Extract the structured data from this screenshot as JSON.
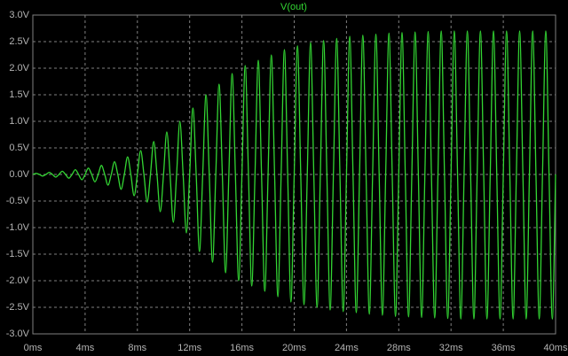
{
  "chart_data": {
    "type": "line",
    "background": "#000000",
    "grid": true,
    "xlim": [
      0,
      40
    ],
    "ylim": [
      -3,
      3
    ],
    "xticks": [
      {
        "value": 0,
        "label": "0ms"
      },
      {
        "value": 4,
        "label": "4ms"
      },
      {
        "value": 8,
        "label": "8ms"
      },
      {
        "value": 12,
        "label": "12ms"
      },
      {
        "value": 16,
        "label": "16ms"
      },
      {
        "value": 20,
        "label": "20ms"
      },
      {
        "value": 24,
        "label": "24ms"
      },
      {
        "value": 28,
        "label": "28ms"
      },
      {
        "value": 32,
        "label": "32ms"
      },
      {
        "value": 36,
        "label": "36ms"
      },
      {
        "value": 40,
        "label": "40ms"
      }
    ],
    "yticks": [
      {
        "value": 3,
        "label": "3.0V"
      },
      {
        "value": 2.5,
        "label": "2.5V"
      },
      {
        "value": 2,
        "label": "2.0V"
      },
      {
        "value": 1.5,
        "label": "1.5V"
      },
      {
        "value": 1,
        "label": "1.0V"
      },
      {
        "value": 0.5,
        "label": "0.5V"
      },
      {
        "value": 0,
        "label": "0.0V"
      },
      {
        "value": -0.5,
        "label": "-0.5V"
      },
      {
        "value": -1,
        "label": "-1.0V"
      },
      {
        "value": -1.5,
        "label": "-1.5V"
      },
      {
        "value": -2,
        "label": "-2.0V"
      },
      {
        "value": -2.5,
        "label": "-2.5V"
      },
      {
        "value": -3,
        "label": "-3.0V"
      }
    ],
    "x": [
      0,
      0.25,
      0.5,
      0.75,
      1,
      1.25,
      1.5,
      1.75,
      2,
      2.25,
      2.5,
      2.75,
      3,
      3.25,
      3.5,
      3.75,
      4,
      4.25,
      4.5,
      4.75,
      5,
      5.25,
      5.5,
      5.75,
      6,
      6.25,
      6.5,
      6.75,
      7,
      7.25,
      7.5,
      7.75,
      8,
      8.25,
      8.5,
      8.75,
      9,
      9.25,
      9.5,
      9.75,
      10,
      10.25,
      10.5,
      10.75,
      11,
      11.25,
      11.5,
      11.75,
      12,
      12.25,
      12.5,
      12.75,
      13,
      13.25,
      13.5,
      13.75,
      14,
      14.25,
      14.5,
      14.75,
      15,
      15.25,
      15.5,
      15.75,
      16,
      16.25,
      16.5,
      16.75,
      17,
      17.25,
      17.5,
      17.75,
      18,
      18.25,
      18.5,
      18.75,
      19,
      19.25,
      19.5,
      19.75,
      20,
      20.25,
      20.5,
      20.75,
      21,
      21.25,
      21.5,
      21.75,
      22,
      22.25,
      22.5,
      22.75,
      23,
      23.25,
      23.5,
      23.75,
      24,
      24.25,
      24.5,
      24.75,
      25,
      25.25,
      25.5,
      25.75,
      26,
      26.25,
      26.5,
      26.75,
      27,
      27.25,
      27.5,
      27.75,
      28,
      28.25,
      28.5,
      28.75,
      29,
      29.25,
      29.5,
      29.75,
      30,
      30.25,
      30.5,
      30.75,
      31,
      31.25,
      31.5,
      31.75,
      32,
      32.25,
      32.5,
      32.75,
      33,
      33.25,
      33.5,
      33.75,
      34,
      34.25,
      34.5,
      34.75,
      35,
      35.25,
      35.5,
      35.75,
      36,
      36.25,
      36.5,
      36.75,
      37,
      37.25,
      37.5,
      37.75,
      38,
      38.25,
      38.5,
      38.75,
      39,
      39.25,
      39.5,
      39.75,
      40
    ],
    "series": [
      {
        "name": "V(out)",
        "color": "#33d633",
        "values": [
          0,
          0.02,
          0,
          -0.03,
          0,
          0.04,
          0,
          -0.05,
          0,
          0.06,
          0,
          -0.07,
          0,
          0.09,
          0,
          -0.1,
          0,
          0.12,
          0,
          -0.14,
          0,
          0.17,
          0,
          -0.2,
          0,
          0.24,
          0,
          -0.28,
          0,
          0.33,
          0,
          -0.4,
          0,
          0.45,
          0,
          -0.52,
          0,
          0.62,
          0,
          -0.7,
          0,
          0.8,
          0,
          -0.9,
          0,
          1.0,
          0,
          -1.1,
          0,
          1.25,
          0,
          -1.45,
          0,
          1.5,
          0,
          -1.65,
          0,
          1.7,
          0,
          -1.85,
          0,
          1.9,
          0,
          -2.0,
          0,
          2.05,
          0,
          -2.1,
          0,
          2.15,
          0,
          -2.2,
          0,
          2.25,
          0,
          -2.3,
          0,
          2.35,
          0,
          -2.4,
          0,
          2.42,
          0,
          -2.45,
          0,
          2.48,
          0,
          -2.5,
          0,
          2.52,
          0,
          -2.55,
          0,
          2.56,
          0,
          -2.58,
          0,
          2.6,
          0,
          -2.6,
          0,
          2.62,
          0,
          -2.63,
          0,
          2.64,
          0,
          -2.65,
          0,
          2.66,
          0,
          -2.67,
          0,
          2.67,
          0,
          -2.68,
          0,
          2.68,
          0,
          -2.69,
          0,
          2.69,
          0,
          -2.7,
          0,
          2.7,
          0,
          -2.71,
          0,
          2.7,
          0,
          -2.72,
          0,
          2.7,
          0,
          -2.72,
          0,
          2.7,
          0,
          -2.72,
          0,
          2.7,
          0,
          -2.72,
          0,
          2.7,
          0,
          -2.72,
          0,
          2.7,
          0,
          -2.72,
          0,
          2.7,
          0,
          -2.72,
          0,
          2.7,
          0,
          -2.72,
          0
        ]
      }
    ]
  }
}
